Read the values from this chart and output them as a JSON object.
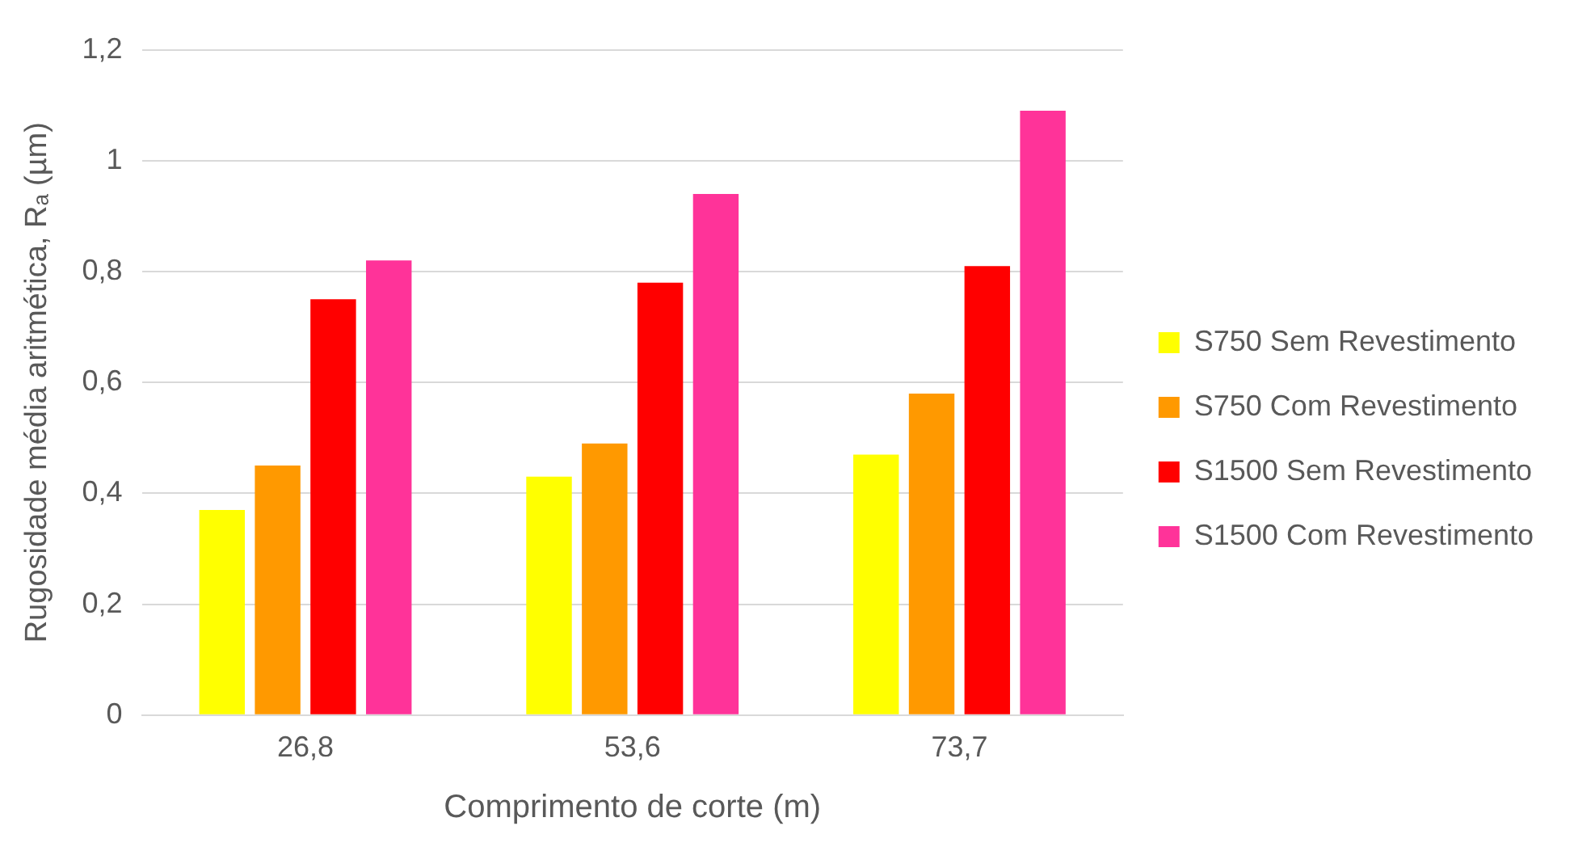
{
  "chart_data": {
    "type": "bar",
    "xlabel": "Comprimento de corte (m)",
    "ylabel": "Rugosidade média aritmética, Rₐ (µm)",
    "categories": [
      "26,8",
      "53,6",
      "73,7"
    ],
    "series": [
      {
        "name": "S750 Sem Revestimento",
        "color": "#ffff00",
        "values": [
          0.37,
          0.43,
          0.47
        ]
      },
      {
        "name": "S750 Com Revestimento",
        "color": "#ff9900",
        "values": [
          0.45,
          0.49,
          0.58
        ]
      },
      {
        "name": "S1500 Sem Revestimento",
        "color": "#ff0000",
        "values": [
          0.75,
          0.78,
          0.81
        ]
      },
      {
        "name": "S1500 Com Revestimento",
        "color": "#ff3399",
        "values": [
          0.82,
          0.94,
          1.09
        ]
      }
    ],
    "ylim": [
      0,
      1.2
    ],
    "yticks": [
      0,
      {
        "value": 0.2,
        "label": "0,2"
      },
      {
        "value": 0.4,
        "label": "0,4"
      },
      {
        "value": 0.6,
        "label": "0,6"
      },
      {
        "value": 0.8,
        "label": "0,8"
      },
      1,
      {
        "value": 1.2,
        "label": "1,2"
      }
    ],
    "grid": "y",
    "legend": "right"
  }
}
